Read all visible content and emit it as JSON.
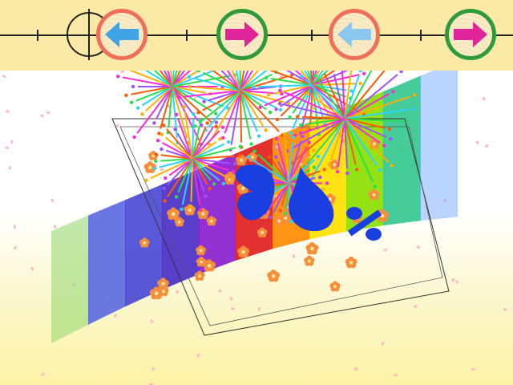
{
  "toolbar": {
    "buttons": [
      {
        "id": "prev-primary",
        "direction": "left",
        "arrow_color": "#3fa3e6",
        "ring_color": "#ef6f5a"
      },
      {
        "id": "next-primary",
        "direction": "right",
        "arrow_color": "#e0249a",
        "ring_color": "#2f9a3a"
      },
      {
        "id": "prev-secondary",
        "direction": "left",
        "arrow_color": "#8cc7ef",
        "ring_color": "#ef6f5a"
      },
      {
        "id": "next-secondary",
        "direction": "right",
        "arrow_color": "#e0249a",
        "ring_color": "#2f9a3a"
      }
    ]
  },
  "scene": {
    "ribbon_colors": [
      "#8fd76a",
      "#5d6be0",
      "#4a4ad6",
      "#4a2fc8",
      "#8a1fd0",
      "#e01f1f",
      "#ff8a00",
      "#ffe000",
      "#8ce000",
      "#36c890",
      "#7fb0ff"
    ],
    "shapes": [
      {
        "type": "digit",
        "color": "#1a3fe0"
      },
      {
        "type": "digit",
        "color": "#1a3fe0"
      },
      {
        "type": "percent-sign",
        "color": "#1a3fe0"
      }
    ],
    "firework_colors": [
      "#ff2ad4",
      "#ffb000",
      "#2ad4ff",
      "#28e04a",
      "#ff5a00",
      "#a050ff"
    ],
    "blossom_color": "#f58f3c",
    "petal_color": "#ffb7c6"
  }
}
